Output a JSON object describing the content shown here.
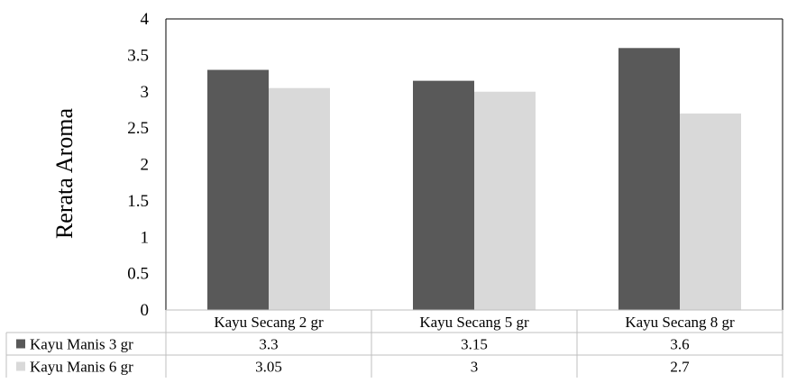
{
  "chart_data": {
    "type": "bar",
    "title": "",
    "xlabel": "",
    "ylabel": "Rerata Aroma",
    "ylim": [
      0,
      4
    ],
    "yticks": [
      0,
      0.5,
      1,
      1.5,
      2,
      2.5,
      3,
      3.5,
      4
    ],
    "categories": [
      "Kayu Secang 2 gr",
      "Kayu Secang 5 gr",
      "Kayu Secang 8 gr"
    ],
    "series": [
      {
        "name": "Kayu Manis 3 gr",
        "values": [
          3.3,
          3.15,
          3.6
        ],
        "display_values": [
          "3.3",
          "3.15",
          "3.6"
        ],
        "color": "#595959"
      },
      {
        "name": "Kayu Manis 6 gr",
        "values": [
          3.05,
          3,
          2.7
        ],
        "display_values": [
          "3.05",
          "3",
          "2.7"
        ],
        "color": "#d9d9d9"
      }
    ],
    "grid": false,
    "legend": "data-table"
  }
}
